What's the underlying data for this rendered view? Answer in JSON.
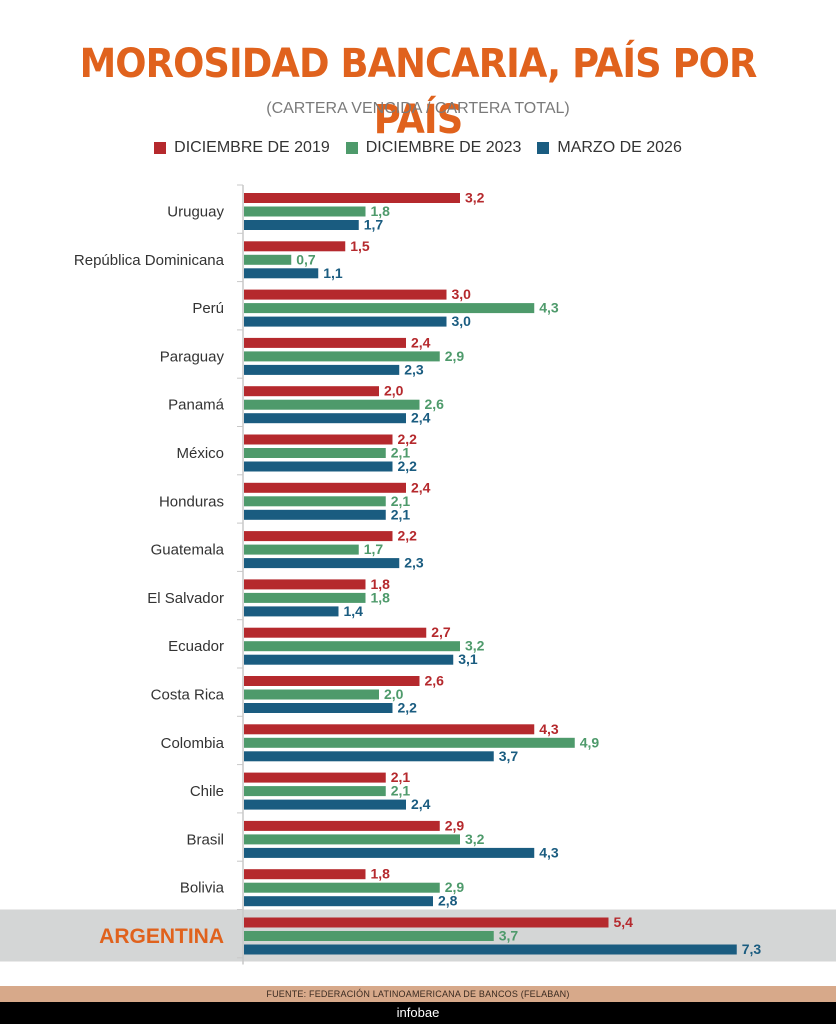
{
  "header": {
    "title": "MOROSIDAD BANCARIA, PAÍS POR PAÍS",
    "subtitle": "(CARTERA VENCIDA / CARTERA TOTAL)"
  },
  "colors": {
    "title": "#e0621d",
    "series_2019": "#b5292d",
    "series_2023": "#4e9a6b",
    "series_2026": "#1a5c80",
    "highlight_band": "#d4d6d6",
    "highlight_label": "#e0621d"
  },
  "chart_data": {
    "type": "bar",
    "orientation": "horizontal",
    "title": "MOROSIDAD BANCARIA, PAÍS POR PAÍS",
    "subtitle": "(CARTERA VENCIDA / CARTERA TOTAL)",
    "categories": [
      "Uruguay",
      "República Dominicana",
      "Perú",
      "Paraguay",
      "Panamá",
      "México",
      "Honduras",
      "Guatemala",
      "El Salvador",
      "Ecuador",
      "Costa Rica",
      "Colombia",
      "Chile",
      "Brasil",
      "Bolivia",
      "ARGENTINA"
    ],
    "series": [
      {
        "name": "DICIEMBRE DE 2019",
        "color": "#b5292d",
        "values": [
          3.2,
          1.5,
          3.0,
          2.4,
          2.0,
          2.2,
          2.4,
          2.2,
          1.8,
          2.7,
          2.6,
          4.3,
          2.1,
          2.9,
          1.8,
          5.4
        ],
        "labels": [
          "3,2",
          "1,5",
          "3,0",
          "2,4",
          "2,0",
          "2,2",
          "2,4",
          "2,2",
          "1,8",
          "2,7",
          "2,6",
          "4,3",
          "2,1",
          "2,9",
          "1,8",
          "5,4"
        ]
      },
      {
        "name": "DICIEMBRE DE 2023",
        "color": "#4e9a6b",
        "values": [
          1.8,
          0.7,
          4.3,
          2.9,
          2.6,
          2.1,
          2.1,
          1.7,
          1.8,
          3.2,
          2.0,
          4.9,
          2.1,
          3.2,
          2.9,
          3.7
        ],
        "labels": [
          "1,8",
          "0,7",
          "4,3",
          "2,9",
          "2,6",
          "2,1",
          "2,1",
          "1,7",
          "1,8",
          "3,2",
          "2,0",
          "4,9",
          "2,1",
          "3,2",
          "2,9",
          "3,7"
        ]
      },
      {
        "name": "MARZO DE 2026",
        "color": "#1a5c80",
        "values": [
          1.7,
          1.1,
          3.0,
          2.3,
          2.4,
          2.2,
          2.1,
          2.3,
          1.4,
          3.1,
          2.2,
          3.7,
          2.4,
          4.3,
          2.8,
          7.3
        ],
        "labels": [
          "1,7",
          "1,1",
          "3,0",
          "2,3",
          "2,4",
          "2,2",
          "2,1",
          "2,3",
          "1,4",
          "3,1",
          "2,2",
          "3,7",
          "2,4",
          "4,3",
          "2,8",
          "7,3"
        ]
      }
    ],
    "highlight_category": "ARGENTINA",
    "xlim": [
      0,
      7.3
    ],
    "grid": false,
    "legend_position": "top-center"
  },
  "footer": {
    "source": "FUENTE: FEDERACIÓN LATINOAMERICANA DE BANCOS (FELABAN)",
    "brand": "infobae"
  }
}
